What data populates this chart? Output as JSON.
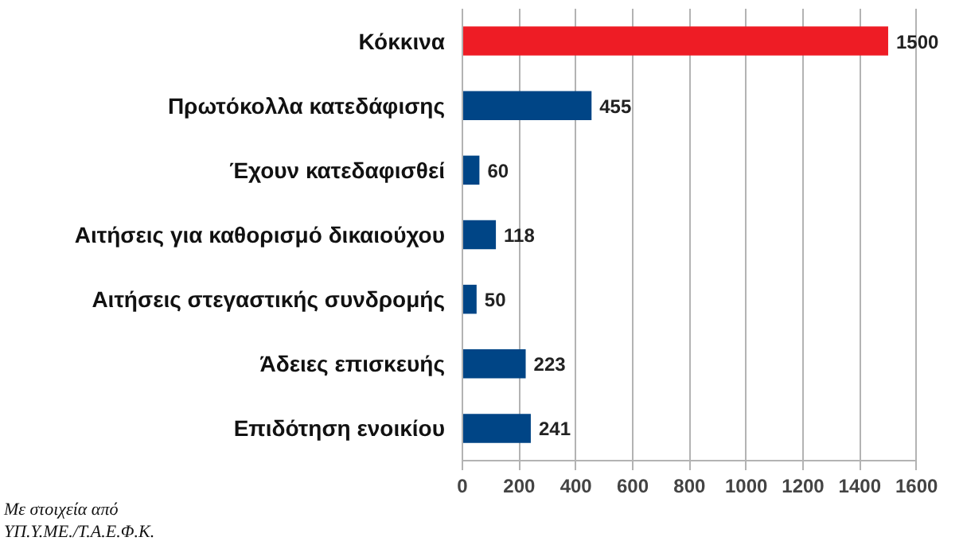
{
  "chart_data": {
    "type": "bar",
    "orientation": "horizontal",
    "categories": [
      "Κόκκινα",
      "Πρωτόκολλα κατεδάφισης",
      "Έχουν κατεδαφισθεί",
      "Αιτήσεις για καθορισμό δικαιούχου",
      "Αιτήσεις στεγαστικής συνδρομής",
      "Άδειες επισκευής",
      "Επιδότηση ενοικίου"
    ],
    "values": [
      1500,
      455,
      60,
      118,
      50,
      223,
      241
    ],
    "colors": [
      "#ee1c25",
      "#004586",
      "#004586",
      "#004586",
      "#004586",
      "#004586",
      "#004586"
    ],
    "xlim": [
      0,
      1600
    ],
    "xticks": [
      0,
      200,
      400,
      600,
      800,
      1000,
      1200,
      1400,
      1600
    ],
    "grid": "x",
    "data_labels": true,
    "annotations": [
      "Με στοιχεία από\nΥΠ.Υ.ΜΕ./Τ.Α.Ε.Φ.Κ."
    ]
  }
}
